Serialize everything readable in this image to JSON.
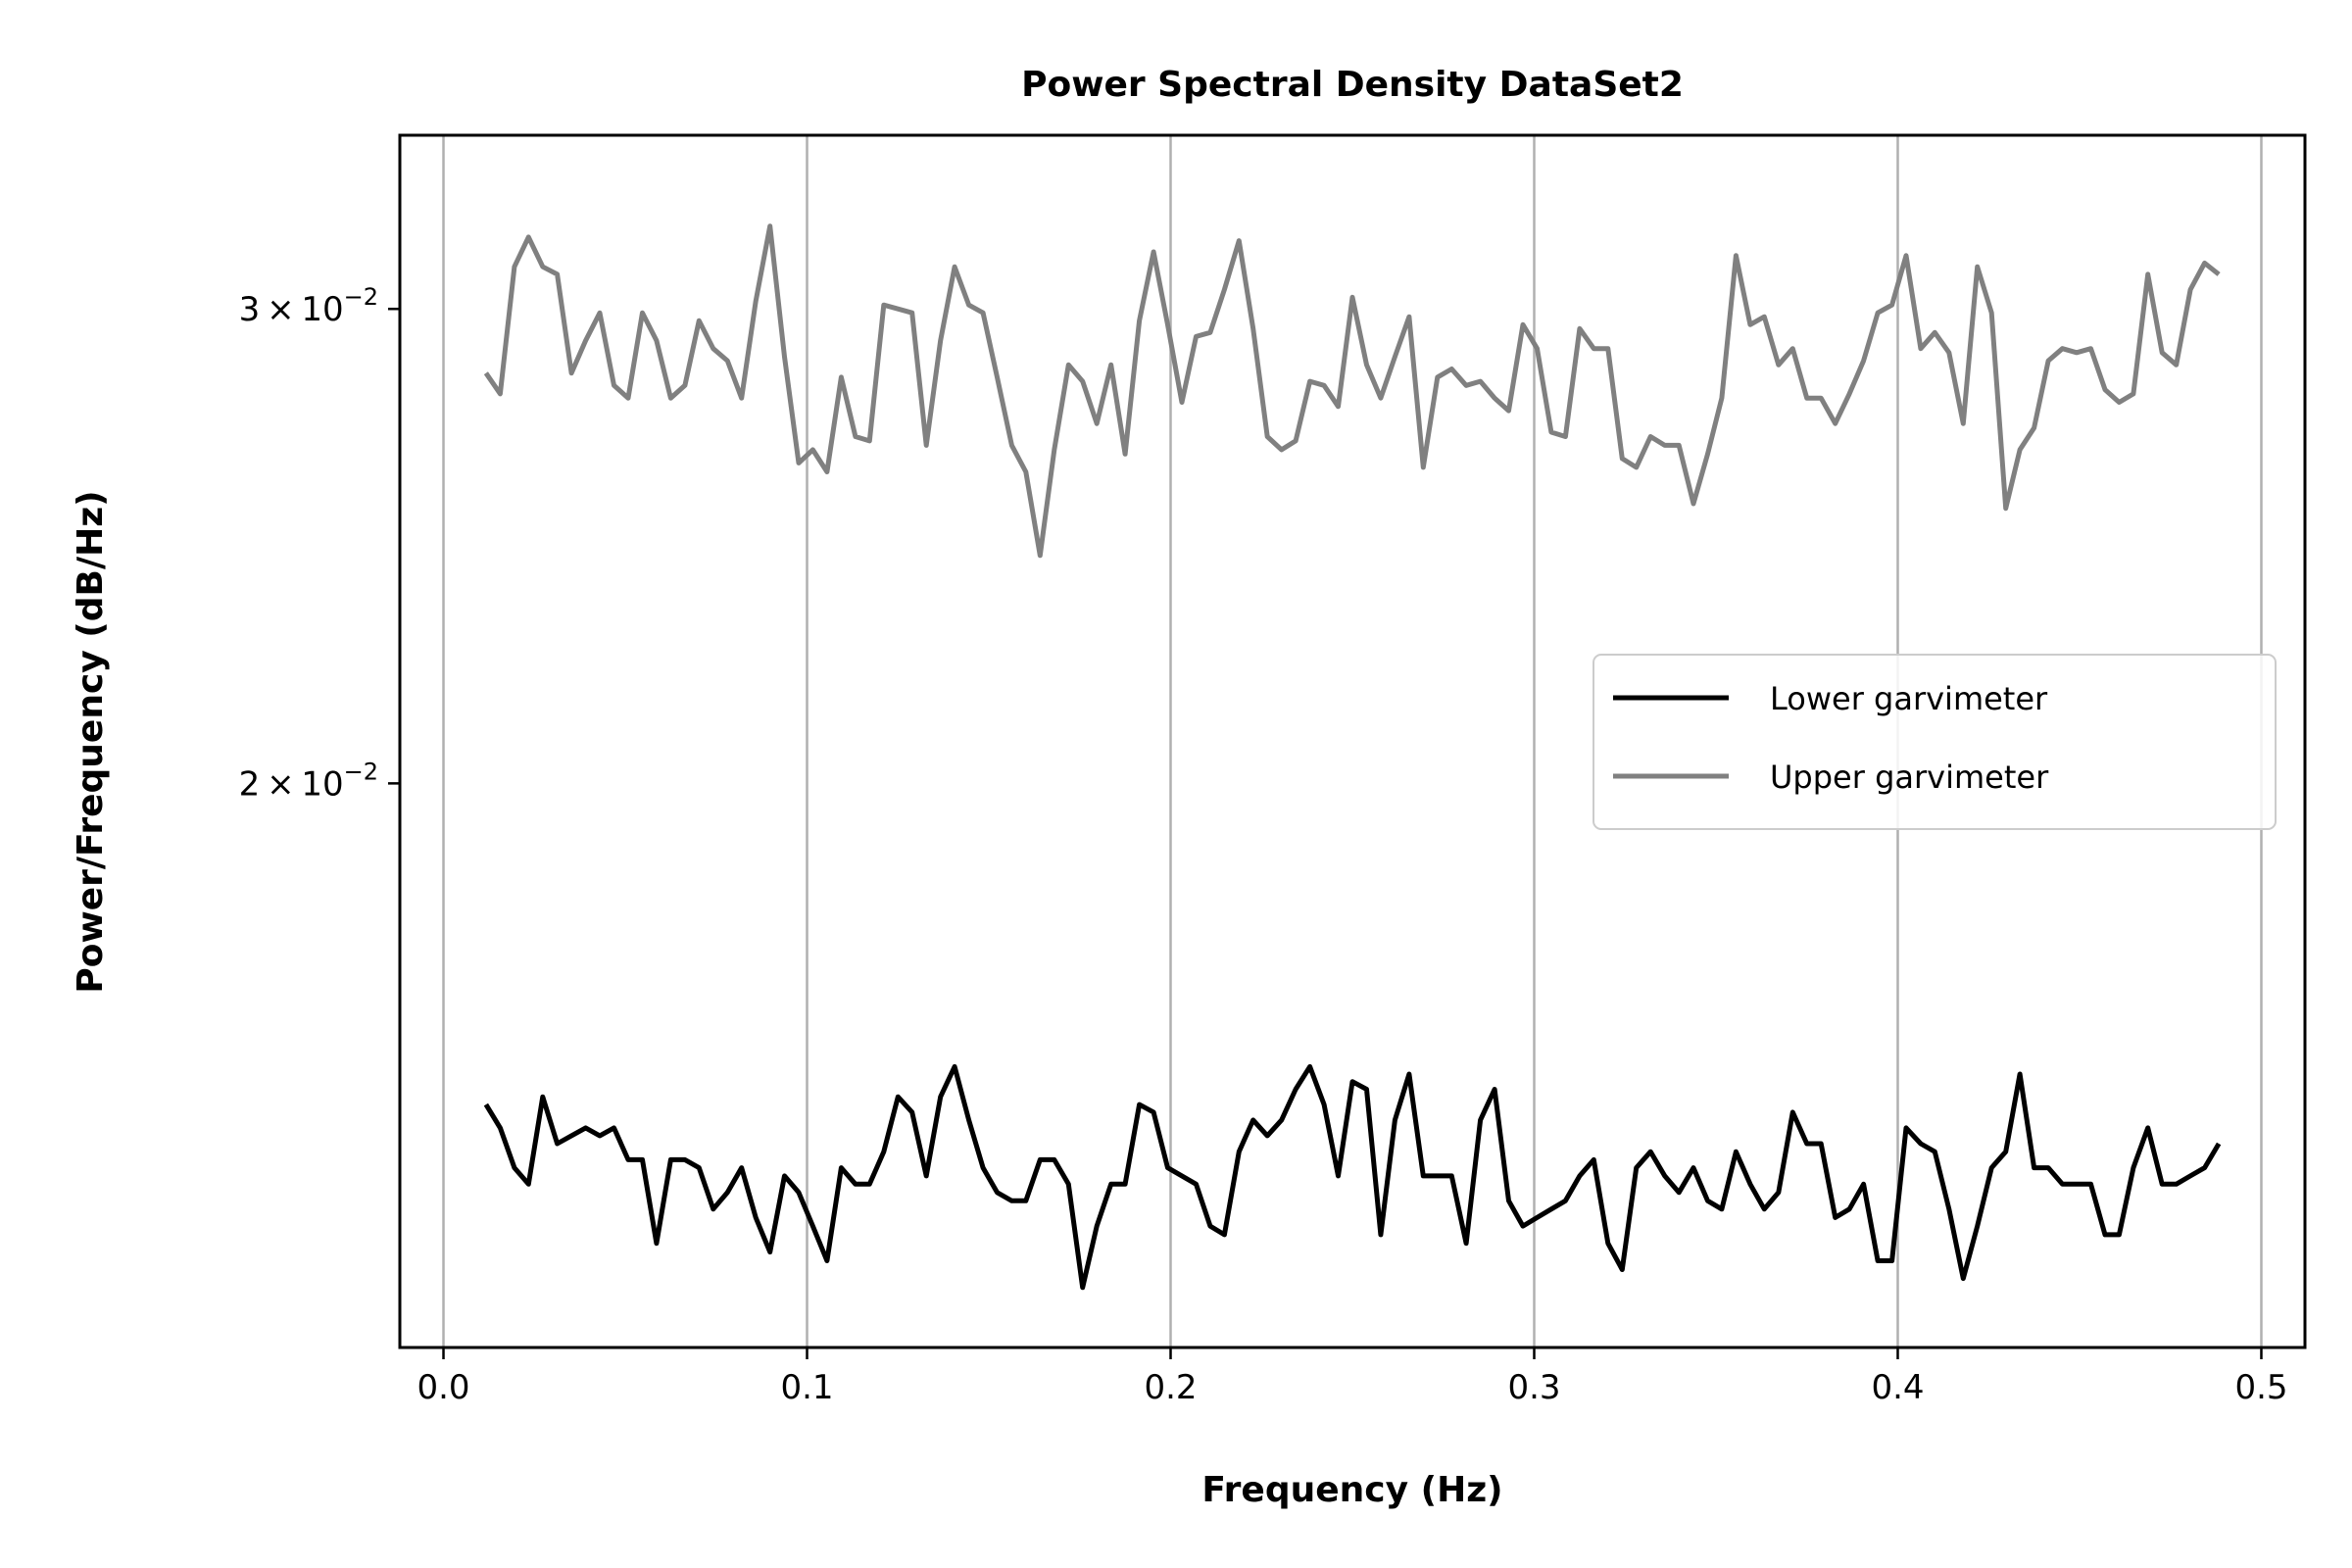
{
  "chart_data": {
    "type": "line",
    "title": "Power Spectral Density DataSet2",
    "xlabel": "Frequency (Hz)",
    "ylabel": "Power/Frequency (dB/Hz)",
    "xlim": [
      -0.012,
      0.512
    ],
    "ylim": [
      0.01235,
      0.0348
    ],
    "yscale": "log",
    "xticks": [
      0.0,
      0.1,
      0.2,
      0.3,
      0.4,
      0.5
    ],
    "xtick_labels": [
      "0.0",
      "0.1",
      "0.2",
      "0.3",
      "0.4",
      "0.5"
    ],
    "yticks": [
      {
        "value": 0.02,
        "mantissa": "2",
        "exp": "−2"
      },
      {
        "value": 0.03,
        "mantissa": "3",
        "exp": "−2"
      }
    ],
    "grid": "x",
    "legend_position": "center-right",
    "x": [
      0.0117,
      0.0156,
      0.0195,
      0.0234,
      0.0273,
      0.0313,
      0.0352,
      0.0391,
      0.043,
      0.0469,
      0.0508,
      0.0547,
      0.0586,
      0.0625,
      0.0664,
      0.0703,
      0.0742,
      0.0781,
      0.082,
      0.0859,
      0.0898,
      0.0938,
      0.0977,
      0.1016,
      0.1055,
      0.1094,
      0.1133,
      0.1172,
      0.1211,
      0.125,
      0.1289,
      0.1328,
      0.1367,
      0.1406,
      0.1445,
      0.1484,
      0.1523,
      0.1563,
      0.1602,
      0.1641,
      0.168,
      0.1719,
      0.1758,
      0.1797,
      0.1836,
      0.1875,
      0.1914,
      0.1953,
      0.1992,
      0.2031,
      0.207,
      0.2109,
      0.2148,
      0.2188,
      0.2227,
      0.2266,
      0.2305,
      0.2344,
      0.2383,
      0.2422,
      0.2461,
      0.25,
      0.2539,
      0.2578,
      0.2617,
      0.2656,
      0.2695,
      0.2734,
      0.2773,
      0.2813,
      0.2852,
      0.2891,
      0.293,
      0.2969,
      0.3008,
      0.3047,
      0.3086,
      0.3125,
      0.3164,
      0.3203,
      0.3242,
      0.3281,
      0.332,
      0.3359,
      0.3398,
      0.3438,
      0.3477,
      0.3516,
      0.3555,
      0.3594,
      0.3633,
      0.3672,
      0.3711,
      0.375,
      0.3789,
      0.3828,
      0.3867,
      0.3906,
      0.3945,
      0.3984,
      0.4023,
      0.4063,
      0.4102,
      0.4141,
      0.418,
      0.4219,
      0.4258,
      0.4297,
      0.4336,
      0.4375,
      0.4414,
      0.4453,
      0.4492,
      0.4531,
      0.457,
      0.4609,
      0.4648,
      0.4688,
      0.4727,
      0.4766,
      0.4805,
      0.4844,
      0.4883
    ],
    "series": [
      {
        "name": "Lower garvimeter",
        "color": "#000000",
        "values": [
          0.0152,
          0.0149,
          0.0144,
          0.0142,
          0.0153,
          0.0147,
          0.0148,
          0.0149,
          0.0148,
          0.0149,
          0.0145,
          0.0145,
          0.0135,
          0.0145,
          0.0145,
          0.0144,
          0.0139,
          0.0141,
          0.0144,
          0.0138,
          0.0134,
          0.0143,
          0.0141,
          0.0137,
          0.0133,
          0.0144,
          0.0142,
          0.0142,
          0.0146,
          0.0153,
          0.0151,
          0.0143,
          0.0153,
          0.0157,
          0.015,
          0.0144,
          0.0141,
          0.014,
          0.014,
          0.0145,
          0.0145,
          0.0142,
          0.013,
          0.0137,
          0.0142,
          0.0142,
          0.0152,
          0.0151,
          0.0144,
          0.0143,
          0.0142,
          0.0137,
          0.0136,
          0.0146,
          0.015,
          0.0148,
          0.015,
          0.0154,
          0.0157,
          0.0152,
          0.0143,
          0.0155,
          0.0154,
          0.0136,
          0.015,
          0.0156,
          0.0143,
          0.0143,
          0.0143,
          0.0135,
          0.015,
          0.0154,
          0.014,
          0.0137,
          0.0138,
          0.0139,
          0.014,
          0.0143,
          0.0145,
          0.0135,
          0.0132,
          0.0144,
          0.0146,
          0.0143,
          0.0141,
          0.0144,
          0.014,
          0.0139,
          0.0146,
          0.0142,
          0.0139,
          0.0141,
          0.0151,
          0.0147,
          0.0147,
          0.0138,
          0.0139,
          0.0142,
          0.0133,
          0.0133,
          0.0149,
          0.0147,
          0.0146,
          0.0139,
          0.0131,
          0.0137,
          0.0144,
          0.0146,
          0.0156,
          0.0144,
          0.0144,
          0.0142,
          0.0142,
          0.0142,
          0.0136,
          0.0136,
          0.0144,
          0.0149,
          0.0142,
          0.0142,
          0.0143,
          0.0144,
          0.0147
        ]
      },
      {
        "name": "Upper garvimeter",
        "color": "#808080",
        "values": [
          0.0284,
          0.0279,
          0.0311,
          0.0319,
          0.0311,
          0.0309,
          0.0284,
          0.0292,
          0.0299,
          0.0281,
          0.0278,
          0.0299,
          0.0292,
          0.0278,
          0.0281,
          0.0297,
          0.029,
          0.0287,
          0.0278,
          0.0302,
          0.0322,
          0.0288,
          0.0263,
          0.0266,
          0.0261,
          0.0283,
          0.0269,
          0.0268,
          0.0301,
          0.03,
          0.0299,
          0.0267,
          0.0292,
          0.0311,
          0.0301,
          0.0299,
          0.0283,
          0.0267,
          0.0261,
          0.0243,
          0.0266,
          0.0286,
          0.0282,
          0.0272,
          0.0286,
          0.0265,
          0.0297,
          0.0315,
          0.0296,
          0.0277,
          0.0293,
          0.0294,
          0.0305,
          0.0318,
          0.0295,
          0.0269,
          0.0266,
          0.0268,
          0.0282,
          0.0281,
          0.0276,
          0.0303,
          0.0286,
          0.0278,
          0.0288,
          0.0298,
          0.0262,
          0.0283,
          0.0285,
          0.0281,
          0.0282,
          0.0278,
          0.0275,
          0.0296,
          0.029,
          0.027,
          0.0269,
          0.0295,
          0.029,
          0.029,
          0.0264,
          0.0262,
          0.0269,
          0.0267,
          0.0267,
          0.0254,
          0.0265,
          0.0278,
          0.0314,
          0.0296,
          0.0298,
          0.0286,
          0.029,
          0.0278,
          0.0278,
          0.0272,
          0.0279,
          0.0287,
          0.0299,
          0.0301,
          0.0314,
          0.029,
          0.0294,
          0.0289,
          0.0272,
          0.0311,
          0.0299,
          0.0253,
          0.0266,
          0.0271,
          0.0287,
          0.029,
          0.0289,
          0.029,
          0.028,
          0.0277,
          0.0279,
          0.0309,
          0.0289,
          0.0286,
          0.0305,
          0.0312,
          0.0309
        ]
      }
    ]
  }
}
